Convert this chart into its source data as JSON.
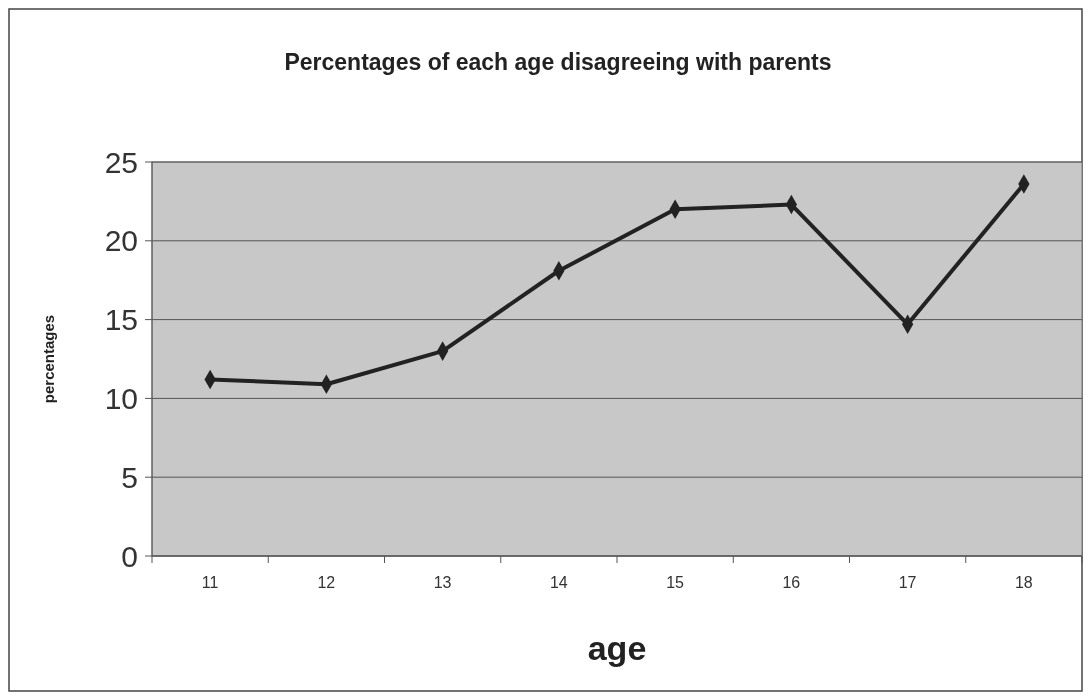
{
  "chart_data": {
    "type": "line",
    "title": "Percentages of each age disagreeing with parents",
    "xlabel": "age",
    "ylabel": "percentages",
    "categories": [
      "11",
      "12",
      "13",
      "14",
      "15",
      "16",
      "17",
      "18"
    ],
    "series": [
      {
        "color": "#222222",
        "values": [
          11.2,
          10.9,
          13.0,
          18.1,
          22.0,
          22.3,
          14.7,
          23.6
        ]
      }
    ],
    "ylim": [
      0,
      25
    ],
    "yticks": [
      0,
      5,
      10,
      15,
      20,
      25
    ],
    "grid": "y",
    "marker": "diamond",
    "line_style": "solid"
  }
}
